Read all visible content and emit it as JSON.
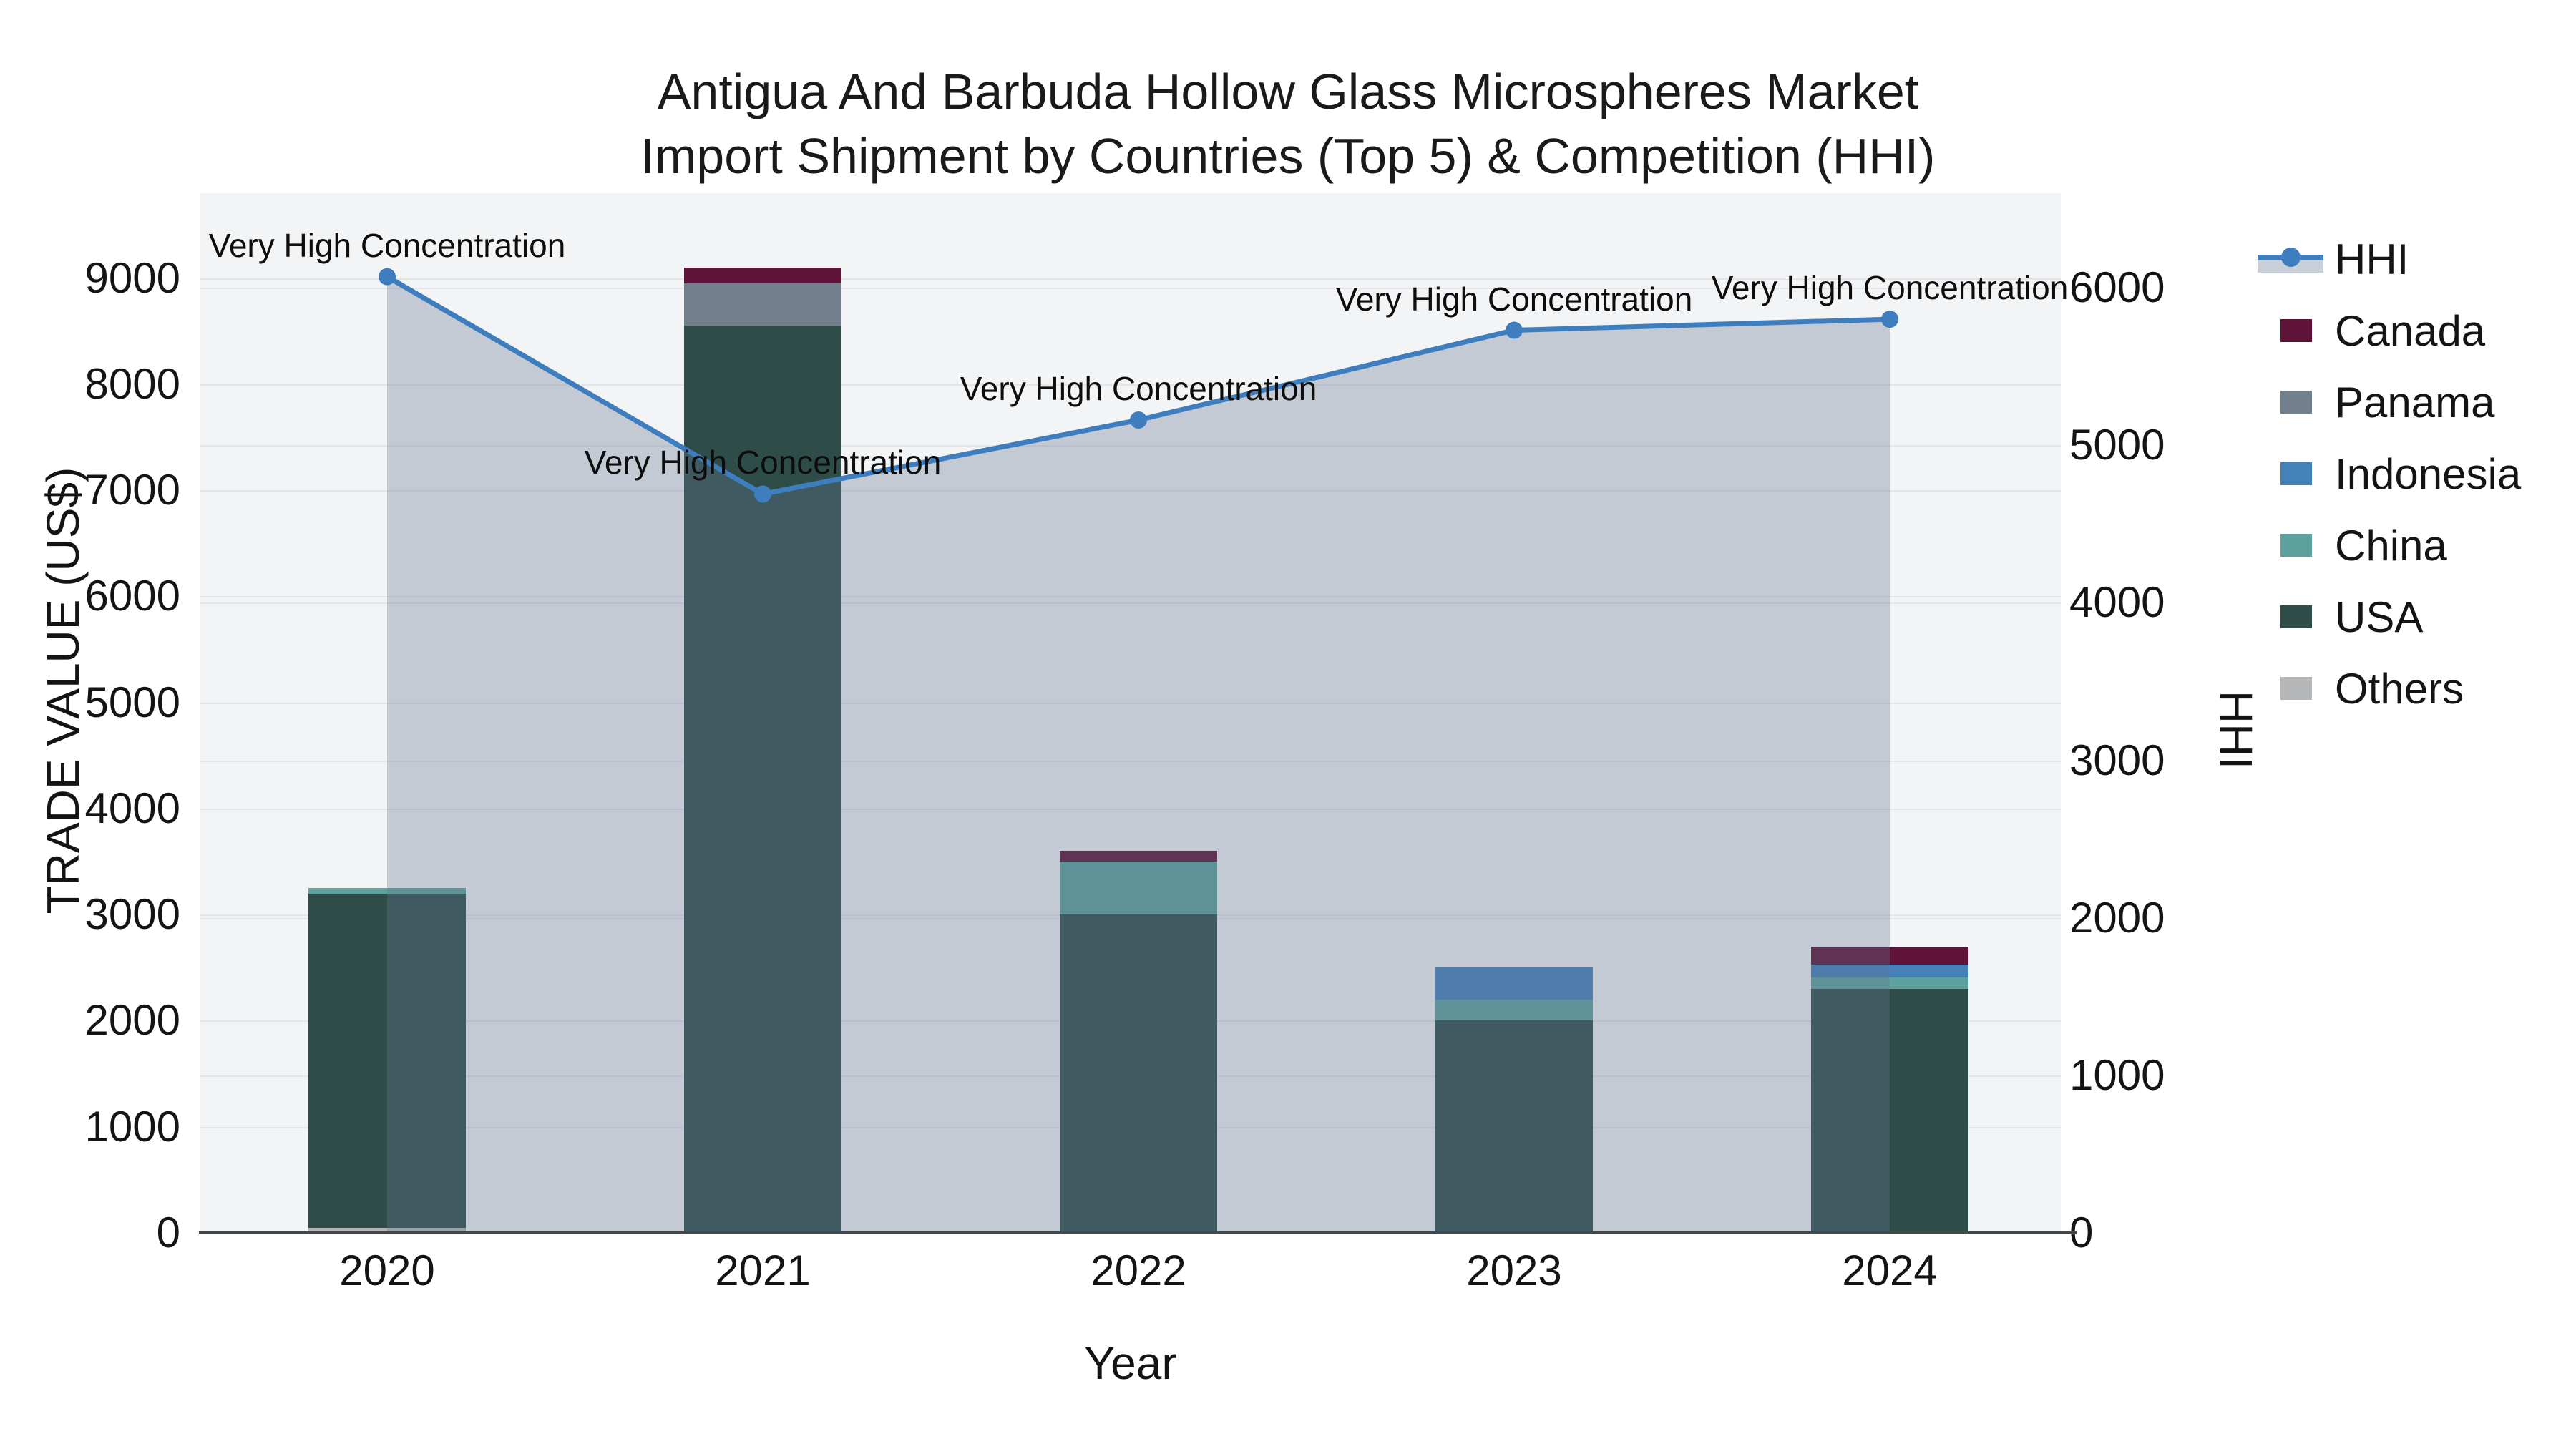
{
  "title": {
    "line1": "Antigua And Barbuda Hollow Glass Microspheres Market",
    "line2": "Import Shipment by Countries (Top 5) & Competition (HHI)"
  },
  "axes": {
    "x": {
      "title": "Year",
      "ticks": [
        "2020",
        "2021",
        "2022",
        "2023",
        "2024"
      ]
    },
    "left": {
      "title": "TRADE VALUE (US$)",
      "ticks": [
        0,
        1000,
        2000,
        3000,
        4000,
        5000,
        6000,
        7000,
        8000,
        9000
      ],
      "range": [
        0,
        9800
      ]
    },
    "right": {
      "title": "HHI",
      "ticks": [
        0,
        1000,
        2000,
        3000,
        4000,
        5000,
        6000
      ],
      "range": [
        0,
        6600
      ]
    }
  },
  "colors": {
    "hhi_line": "#3e7ebe",
    "hhi_area": "rgba(99,117,146,0.33)",
    "hhi_legend_band": "#c9cfd8",
    "canada": "#5f1338",
    "panama": "#72808e",
    "indonesia": "#4381b8",
    "china": "#5fa19d",
    "usa": "#2e4d49",
    "others": "#b4b6b8",
    "plot_bg": "#f3f4f5",
    "grid": "#e4e6e9"
  },
  "legend": {
    "items": [
      {
        "label": "HHI",
        "kind": "line"
      },
      {
        "label": "Canada",
        "kind": "swatch",
        "color": "#5f1338"
      },
      {
        "label": "Panama",
        "kind": "swatch",
        "color": "#72808e"
      },
      {
        "label": "Indonesia",
        "kind": "swatch",
        "color": "#4381b8"
      },
      {
        "label": "China",
        "kind": "swatch",
        "color": "#5fa19d"
      },
      {
        "label": "USA",
        "kind": "swatch",
        "color": "#2e4d49"
      },
      {
        "label": "Others",
        "kind": "swatch",
        "color": "#b4b6b8"
      }
    ]
  },
  "chart_data": {
    "type": "combo",
    "subtype": "stacked-bar + line with area fill",
    "title": "Antigua And Barbuda Hollow Glass Microspheres Market Import Shipment by Countries (Top 5) & Competition (HHI)",
    "xlabel": "Year",
    "ylabel_left": "TRADE VALUE (US$)",
    "ylabel_right": "HHI",
    "categories": [
      2020,
      2021,
      2022,
      2023,
      2024
    ],
    "bar_series": [
      {
        "name": "Canada",
        "color": "#5f1338",
        "values": [
          0,
          150,
          100,
          0,
          170
        ]
      },
      {
        "name": "Panama",
        "color": "#72808e",
        "values": [
          0,
          400,
          0,
          0,
          0
        ]
      },
      {
        "name": "Indonesia",
        "color": "#4381b8",
        "values": [
          0,
          0,
          0,
          300,
          120
        ]
      },
      {
        "name": "China",
        "color": "#5fa19d",
        "values": [
          50,
          0,
          500,
          200,
          110
        ]
      },
      {
        "name": "USA",
        "color": "#2e4d49",
        "values": [
          3150,
          8550,
          3000,
          2000,
          2300
        ]
      },
      {
        "name": "Others",
        "color": "#b4b6b8",
        "values": [
          50,
          0,
          0,
          0,
          0
        ]
      }
    ],
    "bar_totals": [
      3250,
      9100,
      3600,
      2500,
      2700
    ],
    "stack_order_bottom_to_top": [
      "Others",
      "USA",
      "China",
      "Indonesia",
      "Panama",
      "Canada"
    ],
    "line_series": {
      "name": "HHI",
      "axis": "right",
      "color": "#3e7ebe",
      "area_fill": "rgba(99,117,146,0.33)",
      "values": [
        6070,
        4690,
        5160,
        5730,
        5800
      ]
    },
    "annotations": [
      {
        "category": 2020,
        "text": "Very High Concentration"
      },
      {
        "category": 2021,
        "text": "Very High Concentration"
      },
      {
        "category": 2022,
        "text": "Very High Concentration"
      },
      {
        "category": 2023,
        "text": "Very High Concentration"
      },
      {
        "category": 2024,
        "text": "Very High Concentration"
      }
    ],
    "ylim_left": [
      0,
      9800
    ],
    "ylim_right": [
      0,
      6600
    ],
    "grid": true,
    "legend_position": "right"
  }
}
